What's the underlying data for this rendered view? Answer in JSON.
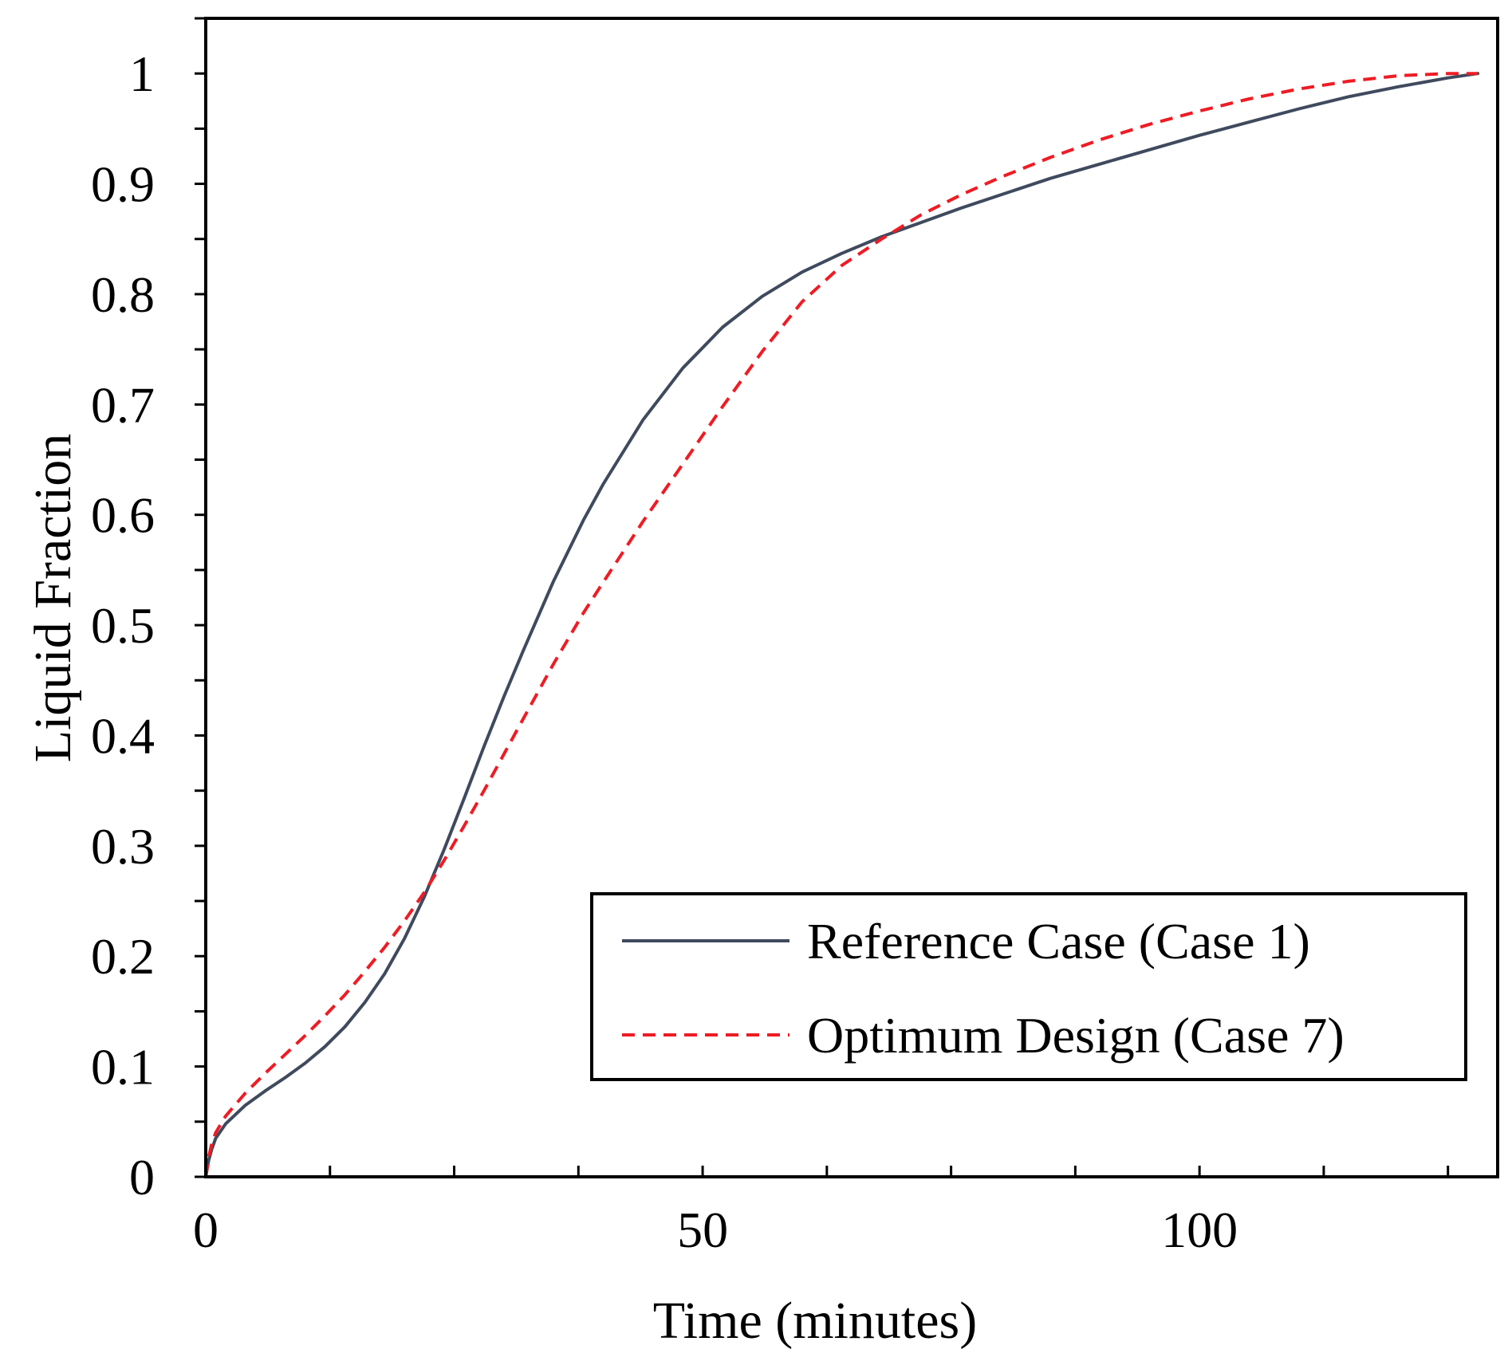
{
  "chart_data": {
    "type": "line",
    "title": "",
    "xlabel": "Time (minutes)",
    "ylabel": "Liquid Fraction",
    "xlim": [
      0,
      130
    ],
    "ylim": [
      0,
      1.05
    ],
    "x_ticks": [
      0,
      50,
      100
    ],
    "x_tick_labels": [
      "0",
      "50",
      "100"
    ],
    "y_ticks": [
      0,
      0.1,
      0.2,
      0.3,
      0.4,
      0.5,
      0.6,
      0.7,
      0.8,
      0.9,
      1
    ],
    "y_tick_labels": [
      "0",
      "0.1",
      "0.2",
      "0.3",
      "0.4",
      "0.5",
      "0.6",
      "0.7",
      "0.8",
      "0.9",
      "1"
    ],
    "grid": false,
    "legend_position": "bottom-right",
    "series": [
      {
        "name": "Reference Case (Case 1)",
        "color": "#3f4a5e",
        "line_style": "solid",
        "x": [
          0,
          0.3,
          0.6,
          1,
          2,
          4,
          6,
          8,
          10,
          12,
          14,
          16,
          18,
          20,
          22,
          24,
          26,
          28,
          30,
          32,
          35,
          38,
          40,
          44,
          48,
          52,
          56,
          60,
          64,
          68,
          72,
          76,
          80,
          85,
          90,
          95,
          100,
          105,
          110,
          115,
          120,
          125,
          128
        ],
        "y": [
          0,
          0.015,
          0.025,
          0.035,
          0.048,
          0.065,
          0.078,
          0.09,
          0.103,
          0.118,
          0.136,
          0.158,
          0.184,
          0.216,
          0.254,
          0.297,
          0.343,
          0.39,
          0.435,
          0.478,
          0.54,
          0.595,
          0.628,
          0.686,
          0.733,
          0.77,
          0.798,
          0.82,
          0.837,
          0.852,
          0.865,
          0.878,
          0.89,
          0.905,
          0.918,
          0.931,
          0.944,
          0.956,
          0.968,
          0.979,
          0.988,
          0.996,
          1.0
        ]
      },
      {
        "name": "Optimum Design (Case 7)",
        "color": "#ee1c24",
        "line_style": "dashed",
        "x": [
          0,
          0.3,
          0.6,
          1,
          2,
          4,
          6,
          8,
          10,
          12,
          14,
          16,
          18,
          20,
          22,
          24,
          26,
          28,
          30,
          32,
          35,
          38,
          40,
          44,
          48,
          52,
          56,
          60,
          64,
          68,
          72,
          76,
          80,
          85,
          90,
          95,
          100,
          105,
          110,
          115,
          120,
          125,
          128
        ],
        "y": [
          0,
          0.018,
          0.03,
          0.04,
          0.055,
          0.076,
          0.094,
          0.111,
          0.128,
          0.146,
          0.165,
          0.186,
          0.208,
          0.232,
          0.258,
          0.287,
          0.318,
          0.35,
          0.383,
          0.416,
          0.465,
          0.511,
          0.539,
          0.594,
          0.646,
          0.698,
          0.748,
          0.793,
          0.826,
          0.85,
          0.872,
          0.89,
          0.906,
          0.924,
          0.94,
          0.954,
          0.966,
          0.977,
          0.986,
          0.993,
          0.998,
          1.0,
          1.0
        ]
      }
    ]
  }
}
